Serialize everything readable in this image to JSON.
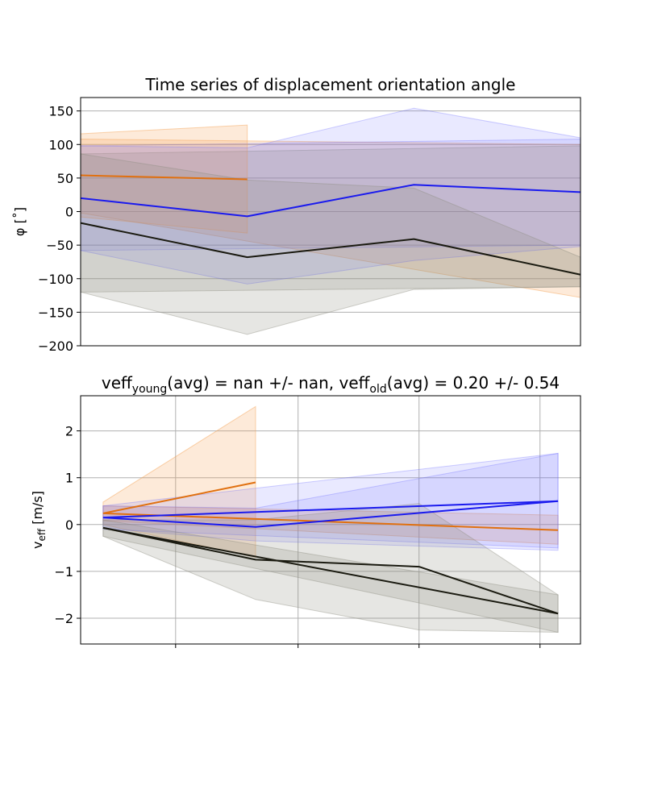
{
  "chart_data": [
    {
      "type": "line",
      "title": "Time series of displacement orientation angle",
      "xlabel": "",
      "ylabel": "φ [˚]",
      "ylim": [
        -200,
        170
      ],
      "xlim": [
        0,
        3
      ],
      "yticks": [
        -200,
        -150,
        -100,
        -50,
        0,
        50,
        100,
        150
      ],
      "grid": "horizontal",
      "series": [
        {
          "color": "#e07010",
          "x": [
            0,
            1
          ],
          "values": [
            54,
            48
          ],
          "band_upper": [
            116,
            129
          ],
          "band_lower": [
            -8,
            -32
          ]
        },
        {
          "color": "#1a1aee",
          "x": [
            0,
            1,
            2,
            3
          ],
          "values": [
            20,
            -7,
            40,
            29
          ],
          "band_upper": [
            98,
            95,
            154,
            110
          ],
          "band_lower": [
            -58,
            -108,
            -73,
            -52
          ]
        },
        {
          "color": "#1a1a10",
          "x": [
            0,
            1,
            2,
            3
          ],
          "values": [
            -17,
            -68,
            -41,
            -94
          ],
          "band_upper": [
            86,
            47,
            35,
            -68
          ],
          "band_lower": [
            -120,
            -183,
            -116,
            -112
          ]
        }
      ],
      "extra_bands": [
        {
          "color": "#f5a050",
          "x": [
            0,
            3
          ],
          "upper": [
            108,
            100
          ],
          "lower": [
            -2,
            -128
          ]
        },
        {
          "color": "#8080f0",
          "x": [
            0,
            3
          ],
          "upper": [
            98,
            108
          ],
          "lower": [
            -58,
            -50
          ]
        },
        {
          "color": "#909090",
          "x": [
            0,
            3
          ],
          "upper": [
            86,
            98
          ],
          "lower": [
            -120,
            -112
          ]
        }
      ]
    },
    {
      "type": "line",
      "title_parts": [
        "veff",
        "young",
        "(avg) = nan +/- nan, veff",
        "old",
        "(avg) = 0.20 +/- 0.54"
      ],
      "xlabel": "",
      "ylabel_parts": [
        "v",
        "eff",
        " [m/s]"
      ],
      "ylim": [
        -2.55,
        2.75
      ],
      "xlim": [
        0,
        1
      ],
      "yticks": [
        -2,
        -1,
        0,
        1,
        2
      ],
      "grid": "both",
      "xgrid": [
        0.19,
        0.435,
        0.677,
        0.919
      ],
      "series": [
        {
          "color": "#e07010",
          "x": [
            0.045,
            0.35
          ],
          "values": [
            0.24,
            0.9
          ],
          "band_upper": [
            0.48,
            2.52
          ],
          "band_lower": [
            0.0,
            -0.7
          ]
        },
        {
          "color": "#e07010",
          "x": [
            0.045,
            0.955
          ],
          "values": [
            0.24,
            -0.12
          ],
          "band_upper": [
            0.4,
            0.2
          ],
          "band_lower": [
            0.08,
            -0.42
          ]
        },
        {
          "color": "#1a1aee",
          "x": [
            0.045,
            0.35,
            0.955
          ],
          "values": [
            0.15,
            -0.05,
            0.5
          ],
          "band_upper": [
            0.4,
            0.35,
            1.52
          ],
          "band_lower": [
            -0.08,
            -0.35,
            -0.55
          ]
        },
        {
          "color": "#1a1aee",
          "x": [
            0.045,
            0.955
          ],
          "values": [
            0.15,
            0.5
          ],
          "band_upper": [
            0.4,
            1.52
          ],
          "band_lower": [
            -0.1,
            -0.5
          ]
        },
        {
          "color": "#1a1a10",
          "x": [
            0.045,
            0.35,
            0.677,
            0.955
          ],
          "values": [
            -0.07,
            -0.75,
            -0.9,
            -1.9
          ],
          "band_upper": [
            0.1,
            0.1,
            0.45,
            -1.5
          ],
          "band_lower": [
            -0.25,
            -1.6,
            -2.25,
            -2.3
          ]
        },
        {
          "color": "#1a1a10",
          "x": [
            0.045,
            0.955
          ],
          "values": [
            -0.07,
            -1.9
          ],
          "band_upper": [
            0.1,
            -1.5
          ],
          "band_lower": [
            -0.25,
            -2.3
          ]
        }
      ]
    }
  ]
}
